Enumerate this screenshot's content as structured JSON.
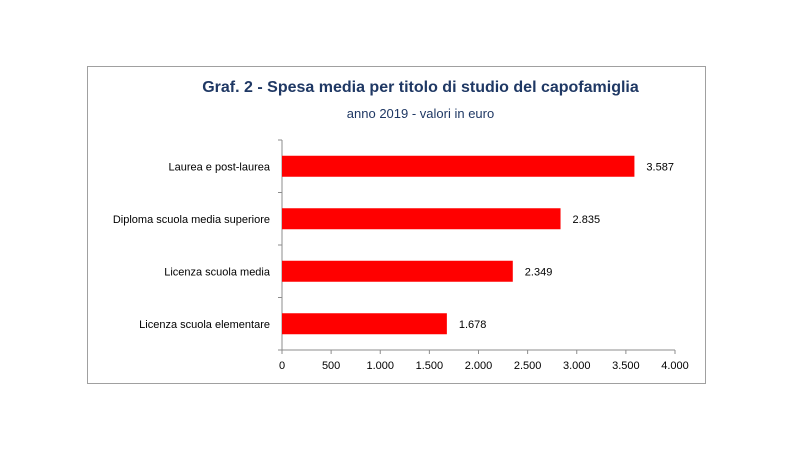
{
  "chart_data": {
    "type": "bar",
    "orientation": "horizontal",
    "title": "Graf. 2 - Spesa media per titolo di studio del capofamiglia",
    "subtitle": "anno 2019 - valori in euro",
    "categories": [
      "Laurea e post-laurea",
      "Diploma scuola media superiore",
      "Licenza scuola media",
      "Licenza scuola elementare"
    ],
    "values": [
      3587,
      2835,
      2349,
      1678
    ],
    "value_labels": [
      "3.587",
      "2.835",
      "2.349",
      "1.678"
    ],
    "xlim": [
      0,
      4000
    ],
    "ticks": [
      0,
      500,
      1000,
      1500,
      2000,
      2500,
      3000,
      3500,
      4000
    ],
    "tick_labels": [
      "0",
      "500",
      "1.000",
      "1.500",
      "2.000",
      "2.500",
      "3.000",
      "3.500",
      "4.000"
    ],
    "bar_color": "#ff0000",
    "grid": false,
    "legend": "none"
  }
}
